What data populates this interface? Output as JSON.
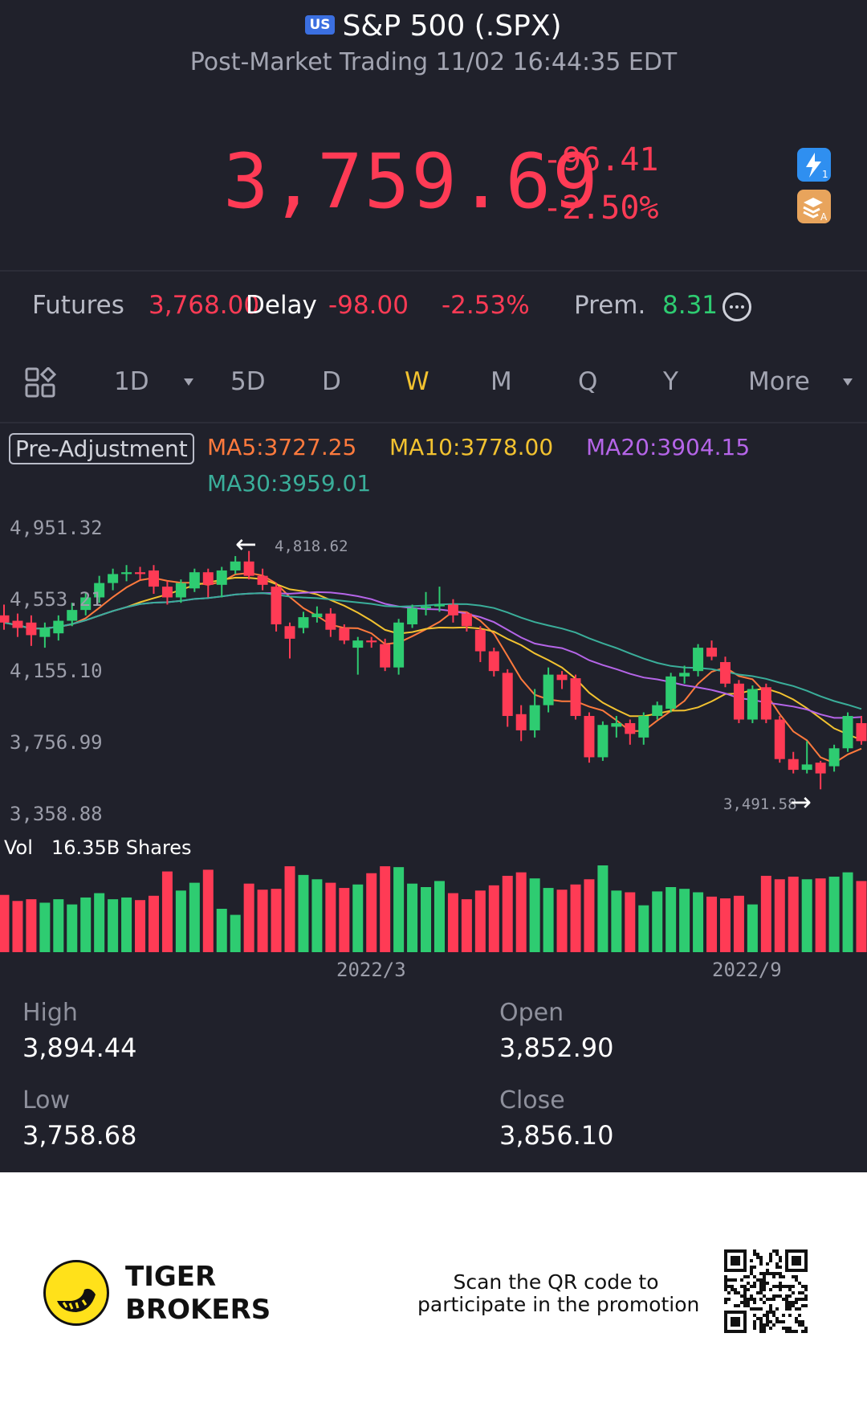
{
  "header": {
    "market_badge": "US",
    "title": "S&P 500 (.SPX)",
    "subtitle": "Post-Market Trading 11/02 16:44:35 EDT",
    "price": "3,759.69",
    "change": "-96.41",
    "change_pct": "-2.50%",
    "side_icons": [
      "lightning-icon",
      "stack-icon"
    ]
  },
  "futures": {
    "label": "Futures",
    "value": "3,768.00",
    "delay": "Delay",
    "change": "-98.00",
    "change_pct": "-2.53%",
    "prem_label": "Prem.",
    "prem_value": "8.31"
  },
  "periods": {
    "layout_icon": "grid-icon",
    "tabs": [
      "1D",
      "5D",
      "D",
      "W",
      "M",
      "Q",
      "Y"
    ],
    "active": "W",
    "more": "More"
  },
  "indicators": {
    "pre_adjustment": "Pre-Adjustment",
    "ma5": "MA5:3727.25",
    "ma10": "MA10:3778.00",
    "ma20": "MA20:3904.15",
    "ma30": "MA30:3959.01"
  },
  "colors": {
    "up": "#2ecc71",
    "down": "#ff3b55",
    "ma5": "#ff7a3d",
    "ma10": "#f2c230",
    "ma20": "#b565e8",
    "ma30": "#3aae9a",
    "background": "#20212b"
  },
  "vol": {
    "label": "Vol",
    "value": "16.35B Shares"
  },
  "stats": {
    "high_label": "High",
    "high": "3,894.44",
    "open_label": "Open",
    "open": "3,852.90",
    "low_label": "Low",
    "low": "3,758.68",
    "close_label": "Close",
    "close": "3,856.10"
  },
  "footer": {
    "brand_line1": "TIGER",
    "brand_line2": "BROKERS",
    "promo_line1": "Scan the QR code to",
    "promo_line2": "participate in the promotion"
  },
  "chart_data": {
    "type": "candlestick",
    "y_ticks": [
      "4,951.32",
      "4,553.21",
      "4,155.10",
      "3,756.99",
      "3,358.88"
    ],
    "x_ticks": [
      "2022/3",
      "2022/9"
    ],
    "ylim": [
      3358.88,
      4951.32
    ],
    "max_label": "4,818.62",
    "min_label": "3,491.58",
    "candles": [
      {
        "o": 4460,
        "c": 4420,
        "h": 4520,
        "l": 4380,
        "v": 0.66
      },
      {
        "o": 4430,
        "c": 4390,
        "h": 4470,
        "l": 4340,
        "v": 0.59
      },
      {
        "o": 4420,
        "c": 4350,
        "h": 4460,
        "l": 4290,
        "v": 0.61
      },
      {
        "o": 4340,
        "c": 4390,
        "h": 4420,
        "l": 4280,
        "v": 0.57
      },
      {
        "o": 4360,
        "c": 4430,
        "h": 4460,
        "l": 4320,
        "v": 0.61
      },
      {
        "o": 4430,
        "c": 4490,
        "h": 4530,
        "l": 4400,
        "v": 0.55
      },
      {
        "o": 4490,
        "c": 4560,
        "h": 4590,
        "l": 4460,
        "v": 0.63
      },
      {
        "o": 4560,
        "c": 4640,
        "h": 4680,
        "l": 4530,
        "v": 0.68
      },
      {
        "o": 4640,
        "c": 4690,
        "h": 4720,
        "l": 4600,
        "v": 0.61
      },
      {
        "o": 4690,
        "c": 4700,
        "h": 4740,
        "l": 4650,
        "v": 0.63
      },
      {
        "o": 4700,
        "c": 4690,
        "h": 4730,
        "l": 4660,
        "v": 0.6
      },
      {
        "o": 4710,
        "c": 4620,
        "h": 4740,
        "l": 4580,
        "v": 0.65
      },
      {
        "o": 4620,
        "c": 4560,
        "h": 4650,
        "l": 4520,
        "v": 0.93
      },
      {
        "o": 4560,
        "c": 4640,
        "h": 4660,
        "l": 4530,
        "v": 0.71
      },
      {
        "o": 4610,
        "c": 4700,
        "h": 4720,
        "l": 4590,
        "v": 0.8
      },
      {
        "o": 4700,
        "c": 4630,
        "h": 4720,
        "l": 4560,
        "v": 0.95
      },
      {
        "o": 4630,
        "c": 4710,
        "h": 4730,
        "l": 4560,
        "v": 0.5
      },
      {
        "o": 4710,
        "c": 4760,
        "h": 4790,
        "l": 4690,
        "v": 0.43
      },
      {
        "o": 4760,
        "c": 4680,
        "h": 4818.62,
        "l": 4660,
        "v": 0.79
      },
      {
        "o": 4680,
        "c": 4630,
        "h": 4720,
        "l": 4600,
        "v": 0.72
      },
      {
        "o": 4620,
        "c": 4410,
        "h": 4640,
        "l": 4370,
        "v": 0.73
      },
      {
        "o": 4400,
        "c": 4330,
        "h": 4420,
        "l": 4220,
        "v": 0.99
      },
      {
        "o": 4390,
        "c": 4450,
        "h": 4480,
        "l": 4360,
        "v": 0.89
      },
      {
        "o": 4450,
        "c": 4470,
        "h": 4510,
        "l": 4420,
        "v": 0.84
      },
      {
        "o": 4470,
        "c": 4380,
        "h": 4500,
        "l": 4340,
        "v": 0.8
      },
      {
        "o": 4390,
        "c": 4320,
        "h": 4410,
        "l": 4300,
        "v": 0.74
      },
      {
        "o": 4280,
        "c": 4320,
        "h": 4340,
        "l": 4130,
        "v": 0.78
      },
      {
        "o": 4320,
        "c": 4310,
        "h": 4340,
        "l": 4280,
        "v": 0.91
      },
      {
        "o": 4300,
        "c": 4170,
        "h": 4330,
        "l": 4150,
        "v": 0.99
      },
      {
        "o": 4170,
        "c": 4420,
        "h": 4440,
        "l": 4130,
        "v": 0.98
      },
      {
        "o": 4410,
        "c": 4500,
        "h": 4520,
        "l": 4390,
        "v": 0.79
      },
      {
        "o": 4500,
        "c": 4510,
        "h": 4590,
        "l": 4460,
        "v": 0.75
      },
      {
        "o": 4510,
        "c": 4520,
        "h": 4620,
        "l": 4480,
        "v": 0.82
      },
      {
        "o": 4520,
        "c": 4460,
        "h": 4550,
        "l": 4420,
        "v": 0.68
      },
      {
        "o": 4470,
        "c": 4400,
        "h": 4480,
        "l": 4370,
        "v": 0.61
      },
      {
        "o": 4380,
        "c": 4260,
        "h": 4400,
        "l": 4200,
        "v": 0.71
      },
      {
        "o": 4260,
        "c": 4150,
        "h": 4280,
        "l": 4120,
        "v": 0.77
      },
      {
        "o": 4140,
        "c": 3900,
        "h": 4160,
        "l": 3840,
        "v": 0.88
      },
      {
        "o": 3910,
        "c": 3820,
        "h": 3960,
        "l": 3760,
        "v": 0.92
      },
      {
        "o": 3820,
        "c": 3960,
        "h": 4050,
        "l": 3780,
        "v": 0.85
      },
      {
        "o": 3960,
        "c": 4130,
        "h": 4170,
        "l": 3920,
        "v": 0.74
      },
      {
        "o": 4130,
        "c": 4100,
        "h": 4150,
        "l": 4050,
        "v": 0.72
      },
      {
        "o": 4110,
        "c": 3900,
        "h": 4130,
        "l": 3880,
        "v": 0.78
      },
      {
        "o": 3900,
        "c": 3670,
        "h": 3920,
        "l": 3640,
        "v": 0.84
      },
      {
        "o": 3670,
        "c": 3850,
        "h": 3870,
        "l": 3650,
        "v": 1.0
      },
      {
        "o": 3840,
        "c": 3860,
        "h": 3900,
        "l": 3780,
        "v": 0.71
      },
      {
        "o": 3860,
        "c": 3800,
        "h": 3880,
        "l": 3740,
        "v": 0.69
      },
      {
        "o": 3780,
        "c": 3900,
        "h": 3920,
        "l": 3740,
        "v": 0.54
      },
      {
        "o": 3900,
        "c": 3960,
        "h": 3980,
        "l": 3880,
        "v": 0.7
      },
      {
        "o": 3940,
        "c": 4120,
        "h": 4140,
        "l": 3920,
        "v": 0.75
      },
      {
        "o": 4120,
        "c": 4140,
        "h": 4180,
        "l": 4080,
        "v": 0.73
      },
      {
        "o": 4150,
        "c": 4280,
        "h": 4300,
        "l": 4120,
        "v": 0.69
      },
      {
        "o": 4280,
        "c": 4230,
        "h": 4320,
        "l": 4210,
        "v": 0.64
      },
      {
        "o": 4200,
        "c": 4080,
        "h": 4230,
        "l": 4060,
        "v": 0.62
      },
      {
        "o": 4080,
        "c": 3880,
        "h": 4100,
        "l": 3860,
        "v": 0.65
      },
      {
        "o": 3880,
        "c": 4050,
        "h": 4070,
        "l": 3860,
        "v": 0.55
      },
      {
        "o": 4060,
        "c": 3880,
        "h": 4080,
        "l": 3860,
        "v": 0.88
      },
      {
        "o": 3880,
        "c": 3660,
        "h": 3900,
        "l": 3640,
        "v": 0.84
      },
      {
        "o": 3660,
        "c": 3600,
        "h": 3700,
        "l": 3580,
        "v": 0.87
      },
      {
        "o": 3600,
        "c": 3630,
        "h": 3760,
        "l": 3580,
        "v": 0.84
      },
      {
        "o": 3640,
        "c": 3580,
        "h": 3650,
        "l": 3491.58,
        "v": 0.85
      },
      {
        "o": 3620,
        "c": 3720,
        "h": 3740,
        "l": 3590,
        "v": 0.87
      },
      {
        "o": 3720,
        "c": 3900,
        "h": 3920,
        "l": 3700,
        "v": 0.92
      },
      {
        "o": 3860,
        "c": 3760,
        "h": 3900,
        "l": 3740,
        "v": 0.82
      }
    ]
  }
}
